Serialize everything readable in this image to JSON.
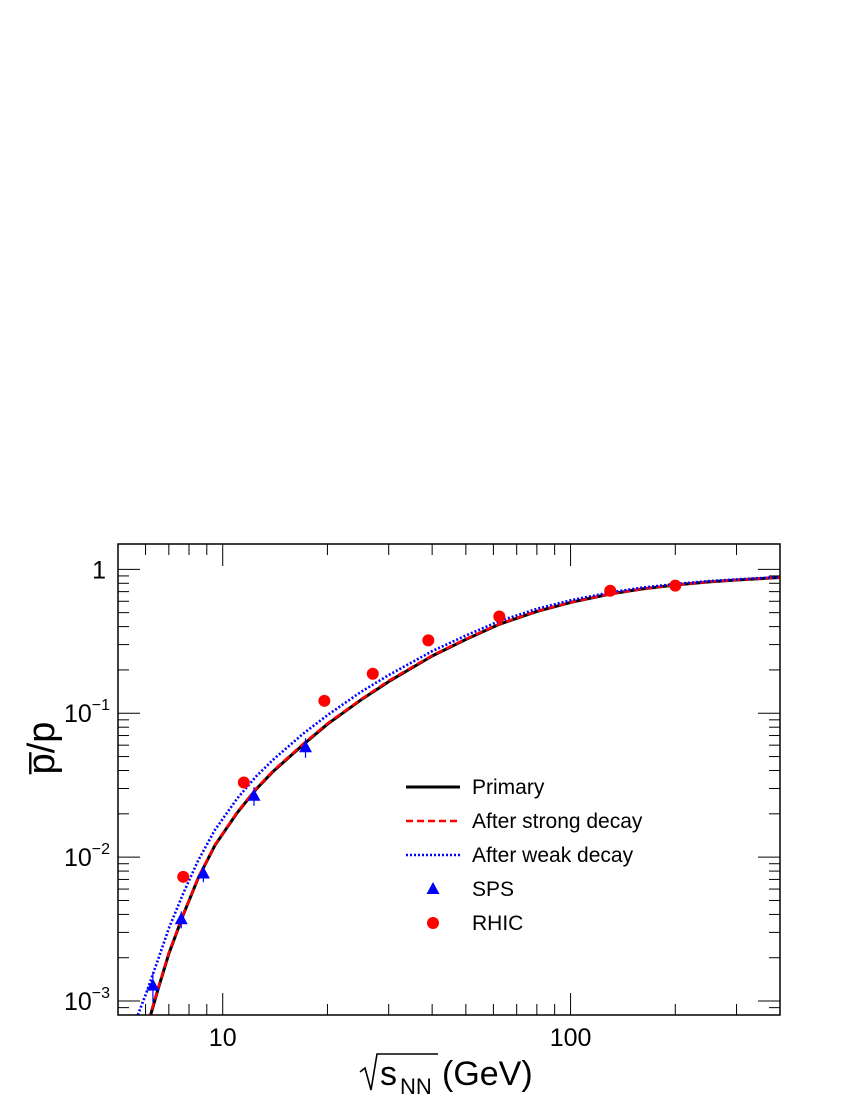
{
  "chart_data": {
    "type": "line",
    "xscale": "log",
    "yscale": "log",
    "xlim": [
      5,
      400
    ],
    "ylim": [
      0.0008,
      1.5
    ],
    "grid": false,
    "legend_position": "center-right",
    "xlabel": {
      "radical": "s",
      "subscript": "NN",
      "unit": "(GeV)"
    },
    "ylabel": "p̅/p",
    "x_ticks": [
      {
        "value": 10,
        "label": "10"
      },
      {
        "value": 100,
        "label": "100"
      }
    ],
    "y_ticks": [
      {
        "value": 0.001,
        "base": "10",
        "exp": "−3"
      },
      {
        "value": 0.01,
        "base": "10",
        "exp": "−2"
      },
      {
        "value": 0.1,
        "base": "10",
        "exp": "−1"
      },
      {
        "value": 1,
        "base": "1",
        "exp": ""
      }
    ],
    "series": [
      {
        "name": "Primary",
        "kind": "line",
        "color": "#000000",
        "dash": "solid",
        "x": [
          6,
          6.5,
          7,
          7.7,
          8.5,
          9.5,
          11,
          12.5,
          14,
          17,
          20,
          25,
          30,
          40,
          50,
          62.4,
          80,
          100,
          130,
          160,
          200,
          250,
          300,
          400
        ],
        "y": [
          0.0006,
          0.00118,
          0.00213,
          0.00397,
          0.00715,
          0.0121,
          0.0203,
          0.0298,
          0.0396,
          0.0603,
          0.0839,
          0.124,
          0.166,
          0.25,
          0.326,
          0.415,
          0.51,
          0.589,
          0.674,
          0.73,
          0.778,
          0.818,
          0.843,
          0.878
        ]
      },
      {
        "name": "After strong decay",
        "kind": "line",
        "color": "#ff0000",
        "dash": "dashed",
        "x": [
          6,
          6.5,
          7,
          7.7,
          8.5,
          9.5,
          11,
          12.5,
          14,
          17,
          20,
          25,
          30,
          40,
          50,
          62.4,
          80,
          100,
          130,
          160,
          200,
          250,
          300,
          400
        ],
        "y": [
          0.00062,
          0.0012,
          0.00216,
          0.004,
          0.0072,
          0.0122,
          0.0205,
          0.0301,
          0.04,
          0.061,
          0.0848,
          0.125,
          0.168,
          0.252,
          0.328,
          0.417,
          0.512,
          0.59,
          0.675,
          0.731,
          0.779,
          0.819,
          0.844,
          0.879
        ]
      },
      {
        "name": "After weak decay",
        "kind": "line",
        "color": "#0000ff",
        "dash": "dotted",
        "x": [
          5.7,
          6,
          6.5,
          7,
          7.7,
          8.5,
          9.5,
          11,
          12.5,
          14,
          17,
          20,
          25,
          30,
          40,
          50,
          62.4,
          80,
          100,
          130,
          160,
          200,
          250,
          300,
          400
        ],
        "y": [
          0.0008,
          0.0011,
          0.0019,
          0.0032,
          0.0056,
          0.0095,
          0.0155,
          0.0255,
          0.0366,
          0.0478,
          0.0718,
          0.0969,
          0.141,
          0.184,
          0.27,
          0.347,
          0.437,
          0.532,
          0.609,
          0.691,
          0.745,
          0.791,
          0.829,
          0.852,
          0.884
        ]
      },
      {
        "name": "SPS",
        "kind": "points",
        "marker": "triangle",
        "color": "#0000ff",
        "x": [
          6.3,
          7.6,
          8.8,
          12.3,
          17.3
        ],
        "y": [
          0.00128,
          0.0037,
          0.0077,
          0.0267,
          0.058
        ],
        "err": [
          0.0003,
          0.0005,
          0.001,
          0.004,
          0.009
        ]
      },
      {
        "name": "RHIC",
        "kind": "points",
        "marker": "circle",
        "color": "#ff0000",
        "x": [
          7.7,
          11.5,
          19.6,
          27,
          39,
          62.4,
          130,
          200
        ],
        "y": [
          0.0073,
          0.033,
          0.122,
          0.188,
          0.321,
          0.47,
          0.71,
          0.77
        ]
      }
    ]
  }
}
